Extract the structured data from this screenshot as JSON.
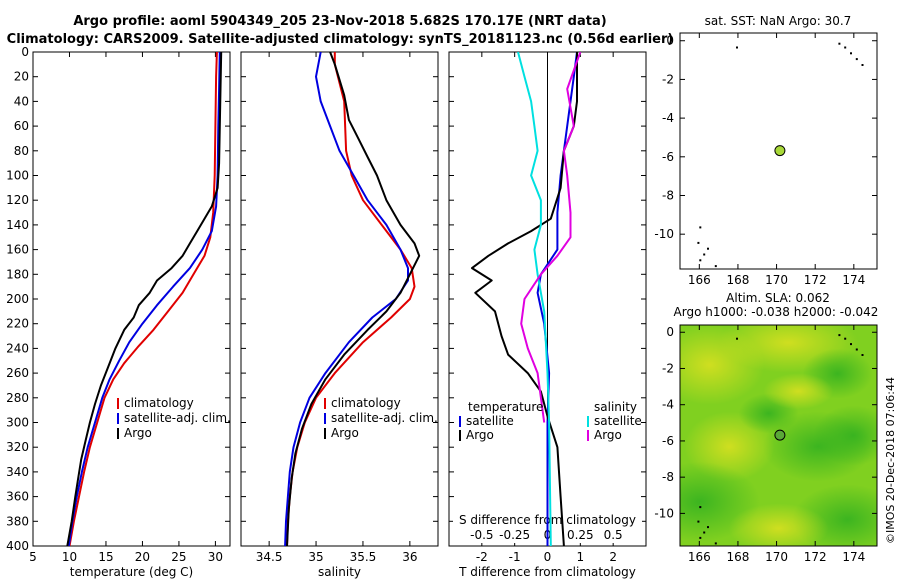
{
  "title": {
    "line1": "Argo profile: aoml 5904349_205 23-Nov-2018 5.682S 170.17E (NRT data)",
    "line2": "Climatology: CARS2009. Satellite-adjusted climatology: synTS_20181123.nc (0.56d earlier)"
  },
  "colors": {
    "climatology": "#e00000",
    "satellite": "#0000e0",
    "argo": "#000000",
    "sat_s": "#00e0e0",
    "argo_s": "#e000e0",
    "map_green": "#80d020"
  },
  "chart_data": [
    {
      "type": "line",
      "name": "temperature",
      "xlabel": "temperature (deg C)",
      "xlim": [
        5,
        32
      ],
      "ylim": [
        400,
        0
      ],
      "xticks": [
        5,
        10,
        15,
        20,
        25,
        30
      ],
      "yticks": [
        0,
        20,
        40,
        60,
        80,
        100,
        120,
        140,
        160,
        180,
        200,
        220,
        240,
        260,
        280,
        300,
        320,
        340,
        360,
        380,
        400
      ],
      "legend": [
        "climatology",
        "satellite-adj. clim.",
        "Argo"
      ],
      "series": [
        {
          "name": "climatology",
          "key": "climatology",
          "points": [
            [
              30.2,
              0
            ],
            [
              30.1,
              20
            ],
            [
              30.0,
              60
            ],
            [
              29.9,
              100
            ],
            [
              29.7,
              130
            ],
            [
              29.3,
              150
            ],
            [
              28.5,
              165
            ],
            [
              27,
              180
            ],
            [
              25.5,
              195
            ],
            [
              23.5,
              210
            ],
            [
              21.5,
              225
            ],
            [
              19.5,
              238
            ],
            [
              17.5,
              252
            ],
            [
              16,
              265
            ],
            [
              14.8,
              280
            ],
            [
              13.8,
              300
            ],
            [
              12.8,
              320
            ],
            [
              12,
              340
            ],
            [
              11.3,
              360
            ],
            [
              10.6,
              380
            ],
            [
              10,
              400
            ]
          ]
        },
        {
          "name": "satellite-adj. clim.",
          "key": "satellite",
          "points": [
            [
              30.6,
              0
            ],
            [
              30.5,
              30
            ],
            [
              30.4,
              60
            ],
            [
              30.3,
              100
            ],
            [
              30.1,
              125
            ],
            [
              29.5,
              145
            ],
            [
              28.2,
              160
            ],
            [
              26.5,
              175
            ],
            [
              24.2,
              190
            ],
            [
              22,
              205
            ],
            [
              20,
              220
            ],
            [
              18.2,
              235
            ],
            [
              16.8,
              250
            ],
            [
              15.5,
              265
            ],
            [
              14.5,
              280
            ],
            [
              13.5,
              300
            ],
            [
              12.5,
              320
            ],
            [
              11.7,
              340
            ],
            [
              11,
              360
            ],
            [
              10.4,
              380
            ],
            [
              9.9,
              400
            ]
          ]
        },
        {
          "name": "Argo",
          "key": "argo",
          "points": [
            [
              30.8,
              0
            ],
            [
              30.7,
              30
            ],
            [
              30.6,
              60
            ],
            [
              30.5,
              90
            ],
            [
              30.3,
              110
            ],
            [
              29.5,
              125
            ],
            [
              28.5,
              135
            ],
            [
              27.5,
              145
            ],
            [
              26.5,
              155
            ],
            [
              25.5,
              165
            ],
            [
              24,
              175
            ],
            [
              22,
              185
            ],
            [
              21,
              195
            ],
            [
              19.5,
              205
            ],
            [
              18.8,
              215
            ],
            [
              17.5,
              225
            ],
            [
              16.3,
              240
            ],
            [
              15.3,
              255
            ],
            [
              14.3,
              270
            ],
            [
              13.5,
              285
            ],
            [
              12.8,
              300
            ],
            [
              12.2,
              315
            ],
            [
              11.6,
              330
            ],
            [
              11.2,
              345
            ],
            [
              10.8,
              360
            ],
            [
              10.3,
              380
            ],
            [
              9.7,
              400
            ]
          ]
        }
      ]
    },
    {
      "type": "line",
      "name": "salinity",
      "xlabel": "salinity",
      "xlim": [
        34.2,
        36.3
      ],
      "ylim": [
        400,
        0
      ],
      "xticks": [
        34.5,
        35,
        35.5,
        36
      ],
      "legend": [
        "climatology",
        "satellite-adj. clim.",
        "Argo"
      ],
      "series": [
        {
          "name": "climatology",
          "key": "climatology",
          "points": [
            [
              35.2,
              0
            ],
            [
              35.2,
              10
            ],
            [
              35.3,
              40
            ],
            [
              35.32,
              80
            ],
            [
              35.38,
              100
            ],
            [
              35.5,
              120
            ],
            [
              35.7,
              140
            ],
            [
              35.9,
              160
            ],
            [
              36.02,
              175
            ],
            [
              36.05,
              190
            ],
            [
              36.0,
              200
            ],
            [
              35.8,
              215
            ],
            [
              35.5,
              235
            ],
            [
              35.2,
              260
            ],
            [
              35.0,
              280
            ],
            [
              34.88,
              300
            ],
            [
              34.8,
              320
            ],
            [
              34.75,
              340
            ],
            [
              34.72,
              360
            ],
            [
              34.7,
              380
            ],
            [
              34.69,
              400
            ]
          ]
        },
        {
          "name": "satellite-adj. clim.",
          "key": "satellite",
          "points": [
            [
              35.05,
              0
            ],
            [
              35.0,
              20
            ],
            [
              35.05,
              40
            ],
            [
              35.15,
              60
            ],
            [
              35.25,
              80
            ],
            [
              35.4,
              100
            ],
            [
              35.55,
              120
            ],
            [
              35.75,
              140
            ],
            [
              35.9,
              160
            ],
            [
              35.98,
              175
            ],
            [
              35.98,
              185
            ],
            [
              35.85,
              200
            ],
            [
              35.6,
              215
            ],
            [
              35.35,
              235
            ],
            [
              35.1,
              260
            ],
            [
              34.93,
              280
            ],
            [
              34.83,
              300
            ],
            [
              34.76,
              320
            ],
            [
              34.72,
              340
            ],
            [
              34.7,
              360
            ],
            [
              34.68,
              380
            ],
            [
              34.67,
              400
            ]
          ]
        },
        {
          "name": "Argo",
          "key": "argo",
          "points": [
            [
              35.15,
              0
            ],
            [
              35.2,
              10
            ],
            [
              35.3,
              35
            ],
            [
              35.35,
              55
            ],
            [
              35.45,
              70
            ],
            [
              35.55,
              85
            ],
            [
              35.65,
              100
            ],
            [
              35.75,
              120
            ],
            [
              35.9,
              140
            ],
            [
              36.05,
              155
            ],
            [
              36.1,
              165
            ],
            [
              36.0,
              180
            ],
            [
              35.9,
              195
            ],
            [
              35.75,
              210
            ],
            [
              35.55,
              225
            ],
            [
              35.3,
              245
            ],
            [
              35.1,
              265
            ],
            [
              34.95,
              285
            ],
            [
              34.85,
              305
            ],
            [
              34.78,
              325
            ],
            [
              34.74,
              345
            ],
            [
              34.71,
              370
            ],
            [
              34.69,
              400
            ]
          ]
        }
      ]
    },
    {
      "type": "line",
      "name": "difference",
      "xlabel": "T difference from climatology",
      "xlabel_top": "S difference from climatology",
      "xlim": [
        -3,
        3
      ],
      "ylim": [
        400,
        0
      ],
      "xticks": [
        -2,
        -1,
        0,
        1,
        2
      ],
      "xtick_labels": [
        "-2",
        "-1",
        "0",
        "1",
        "2"
      ],
      "xticks_top": [
        -2,
        -1,
        0,
        1,
        2
      ],
      "xtick_labels_top": [
        "-0.5",
        "-0.25",
        "0",
        "0.25",
        "0.5"
      ],
      "legend_left_title": "temperature",
      "legend_right_title": "salinity",
      "legend_left": [
        "satellite",
        "Argo"
      ],
      "legend_right": [
        "satellite",
        "Argo"
      ],
      "series": [
        {
          "name": "T satellite",
          "key": "satellite",
          "points": [
            [
              0.9,
              0
            ],
            [
              0.8,
              20
            ],
            [
              0.7,
              40
            ],
            [
              0.6,
              60
            ],
            [
              0.4,
              100
            ],
            [
              0.3,
              130
            ],
            [
              0.3,
              160
            ],
            [
              -0.2,
              180
            ],
            [
              -0.3,
              195
            ],
            [
              -0.1,
              220
            ],
            [
              0.05,
              260
            ],
            [
              0.0,
              300
            ],
            [
              0.0,
              340
            ],
            [
              0.0,
              400
            ]
          ]
        },
        {
          "name": "T Argo",
          "key": "argo",
          "points": [
            [
              0.9,
              0
            ],
            [
              0.9,
              40
            ],
            [
              0.8,
              60
            ],
            [
              0.5,
              80
            ],
            [
              0.4,
              110
            ],
            [
              0.1,
              135
            ],
            [
              -0.5,
              145
            ],
            [
              -1.2,
              155
            ],
            [
              -1.8,
              165
            ],
            [
              -2.3,
              175
            ],
            [
              -1.7,
              185
            ],
            [
              -2.2,
              195
            ],
            [
              -1.6,
              210
            ],
            [
              -1.4,
              230
            ],
            [
              -1.2,
              245
            ],
            [
              -0.6,
              260
            ],
            [
              -0.2,
              275
            ],
            [
              0.0,
              295
            ],
            [
              0.3,
              320
            ],
            [
              0.4,
              360
            ],
            [
              0.5,
              400
            ]
          ]
        },
        {
          "name": "S satellite",
          "key": "sat_s",
          "points": [
            [
              -0.9,
              0
            ],
            [
              -0.7,
              20
            ],
            [
              -0.5,
              40
            ],
            [
              -0.4,
              60
            ],
            [
              -0.3,
              80
            ],
            [
              -0.5,
              100
            ],
            [
              -0.2,
              120
            ],
            [
              -0.2,
              140
            ],
            [
              -0.4,
              160
            ],
            [
              -0.3,
              180
            ],
            [
              -0.1,
              210
            ],
            [
              0.0,
              260
            ],
            [
              0.05,
              300
            ],
            [
              0.1,
              400
            ]
          ]
        },
        {
          "name": "S Argo",
          "key": "argo_s",
          "points": [
            [
              1.0,
              0
            ],
            [
              0.6,
              30
            ],
            [
              0.8,
              60
            ],
            [
              0.5,
              80
            ],
            [
              0.6,
              100
            ],
            [
              0.7,
              130
            ],
            [
              0.7,
              150
            ],
            [
              0.3,
              165
            ],
            [
              -0.2,
              180
            ],
            [
              -0.7,
              200
            ],
            [
              -0.8,
              220
            ],
            [
              -0.6,
              240
            ],
            [
              -0.3,
              260
            ],
            [
              -0.2,
              280
            ],
            [
              -0.1,
              300
            ]
          ]
        }
      ]
    },
    {
      "type": "scatter",
      "name": "sst-map",
      "title": "sat. SST: NaN Argo: 30.7",
      "xlim": [
        165,
        175.2
      ],
      "ylim": [
        -11.8,
        0.4
      ],
      "xticks": [
        166,
        168,
        170,
        172,
        174
      ],
      "yticks": [
        0,
        -2,
        -4,
        -6,
        -8,
        -10
      ],
      "point": [
        170.17,
        -5.68
      ]
    },
    {
      "type": "heatmap",
      "name": "sla-map",
      "title": "Altim. SLA: 0.062",
      "title2": "Argo h1000: -0.038 h2000: -0.042",
      "xlim": [
        165,
        175.2
      ],
      "ylim": [
        -11.8,
        0.4
      ],
      "xticks": [
        166,
        168,
        170,
        172,
        174
      ],
      "yticks": [
        0,
        -2,
        -4,
        -6,
        -8,
        -10
      ],
      "point": [
        170.17,
        -5.68
      ]
    }
  ],
  "footer": {
    "imos": "©IMOS 20-Dec-2018 07:06:44"
  }
}
